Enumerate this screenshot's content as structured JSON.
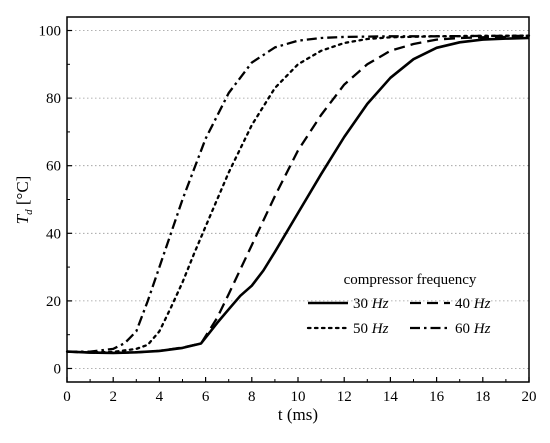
{
  "chart_data": {
    "type": "line",
    "xlabel": "t (ms)",
    "ylabel_symbol": "T",
    "ylabel_subscript": "d",
    "ylabel_unit": " [°C]",
    "xlim": [
      0,
      20
    ],
    "ylim": [
      -4,
      104
    ],
    "xticks": [
      0,
      2,
      4,
      6,
      8,
      10,
      12,
      14,
      16,
      18,
      20
    ],
    "yticks": [
      0,
      20,
      40,
      60,
      80,
      100
    ],
    "grid": "horizontal dotted at y ticks",
    "legend": {
      "title": "compressor frequency",
      "placement": "lower-right",
      "columns": 2
    },
    "series": [
      {
        "name": "30",
        "unit": "Hz",
        "style": "solid",
        "color": "#000000",
        "x": [
          0,
          1,
          2,
          3,
          4,
          5,
          5.8,
          6.5,
          7,
          7.5,
          8,
          8.5,
          9,
          10,
          11,
          12,
          13,
          14,
          15,
          16,
          17,
          18,
          19,
          20
        ],
        "y": [
          5,
          4.7,
          4.6,
          4.8,
          5.2,
          6.1,
          7.4,
          13.5,
          17.5,
          21.5,
          24.5,
          29,
          34.5,
          46,
          57.5,
          68.5,
          78.3,
          86,
          91.5,
          94.9,
          96.5,
          97.3,
          97.6,
          97.8
        ]
      },
      {
        "name": "40",
        "unit": "Hz",
        "style": "dashed",
        "color": "#000000",
        "x": [
          0,
          1,
          2,
          3,
          4,
          5,
          5.8,
          6.5,
          7,
          8,
          9,
          10,
          11,
          12,
          13,
          14,
          15,
          16,
          17,
          18,
          19,
          20
        ],
        "y": [
          5,
          4.7,
          4.6,
          4.8,
          5.2,
          6.2,
          7.4,
          15,
          22,
          36.5,
          51,
          64.5,
          75,
          84,
          90,
          94,
          96,
          97.3,
          97.8,
          98,
          98.1,
          98.2
        ]
      },
      {
        "name": "50",
        "unit": "Hz",
        "style": "dotted",
        "color": "#000000",
        "x": [
          0,
          1,
          2,
          3,
          3.5,
          4,
          4.5,
          5,
          5.5,
          6,
          7,
          8,
          9,
          10,
          11,
          12,
          13,
          14,
          16,
          18,
          20
        ],
        "y": [
          5,
          4.8,
          4.9,
          5.8,
          7,
          11,
          18,
          25.5,
          34,
          42,
          58,
          72,
          83,
          90,
          94,
          96.3,
          97.5,
          98,
          98.3,
          98.4,
          98.5
        ]
      },
      {
        "name": "60",
        "unit": "Hz",
        "style": "dash-dot",
        "color": "#000000",
        "x": [
          0,
          1,
          2,
          2.5,
          3,
          3.5,
          4,
          5,
          6,
          7,
          8,
          9,
          10,
          11,
          12,
          13,
          14,
          16,
          18,
          20
        ],
        "y": [
          5,
          5,
          5.8,
          7.5,
          11,
          20,
          30,
          50,
          68,
          81.5,
          90.5,
          95,
          97,
          97.8,
          98.1,
          98.2,
          98.3,
          98.3,
          98.4,
          98.4
        ]
      }
    ]
  }
}
